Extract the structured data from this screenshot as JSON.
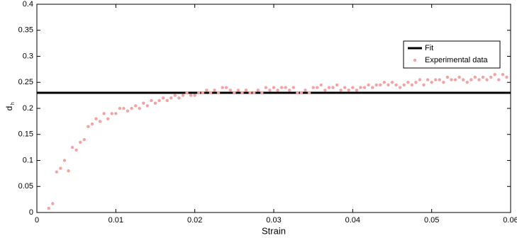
{
  "chart_data": {
    "type": "scatter",
    "xlabel": "Strain",
    "ylabel": "d",
    "ylabel_sub": "h",
    "xlim": [
      0,
      0.06
    ],
    "xticks": [
      0,
      0.01,
      0.02,
      0.03,
      0.04,
      0.05,
      0.06
    ],
    "ylim": [
      0,
      0.4
    ],
    "yticks": [
      0,
      0.05,
      0.1,
      0.15,
      0.2,
      0.25,
      0.3,
      0.35,
      0.4
    ],
    "grid": false,
    "legend": "upper right",
    "series": [
      {
        "name": "Fit",
        "color": "#000000",
        "mode": "line",
        "x": [
          0,
          0.06
        ],
        "values": [
          0.23,
          0.23
        ]
      },
      {
        "name": "Experimental data",
        "color": "#f4a3a3",
        "mode": "markers",
        "x": [
          0.0015,
          0.002,
          0.0025,
          0.003,
          0.0035,
          0.004,
          0.0045,
          0.005,
          0.0055,
          0.006,
          0.0065,
          0.007,
          0.0075,
          0.008,
          0.0085,
          0.009,
          0.0095,
          0.01,
          0.0105,
          0.011,
          0.0115,
          0.012,
          0.0125,
          0.013,
          0.0135,
          0.014,
          0.0145,
          0.015,
          0.0155,
          0.016,
          0.0165,
          0.017,
          0.0175,
          0.018,
          0.0185,
          0.019,
          0.0195,
          0.02,
          0.0205,
          0.021,
          0.0215,
          0.022,
          0.0225,
          0.023,
          0.0235,
          0.024,
          0.0245,
          0.025,
          0.0255,
          0.026,
          0.0265,
          0.027,
          0.0275,
          0.028,
          0.0285,
          0.029,
          0.0295,
          0.03,
          0.0305,
          0.031,
          0.0315,
          0.032,
          0.0325,
          0.033,
          0.0335,
          0.034,
          0.0345,
          0.035,
          0.0355,
          0.036,
          0.0365,
          0.037,
          0.0375,
          0.038,
          0.0385,
          0.039,
          0.0395,
          0.04,
          0.0405,
          0.041,
          0.0415,
          0.042,
          0.0425,
          0.043,
          0.0435,
          0.044,
          0.0445,
          0.045,
          0.0455,
          0.046,
          0.0465,
          0.047,
          0.0475,
          0.048,
          0.0485,
          0.049,
          0.0495,
          0.05,
          0.0505,
          0.051,
          0.0515,
          0.052,
          0.0525,
          0.053,
          0.0535,
          0.054,
          0.0545,
          0.055,
          0.0555,
          0.056,
          0.0565,
          0.057,
          0.0575,
          0.058,
          0.0585,
          0.059,
          0.0595
        ],
        "values": [
          0.008,
          0.017,
          0.078,
          0.085,
          0.1,
          0.08,
          0.125,
          0.12,
          0.135,
          0.14,
          0.165,
          0.17,
          0.18,
          0.175,
          0.19,
          0.18,
          0.19,
          0.19,
          0.2,
          0.2,
          0.195,
          0.2,
          0.205,
          0.2,
          0.21,
          0.205,
          0.215,
          0.21,
          0.215,
          0.22,
          0.215,
          0.22,
          0.225,
          0.22,
          0.225,
          0.23,
          0.225,
          0.225,
          0.23,
          0.23,
          0.235,
          0.23,
          0.235,
          0.23,
          0.24,
          0.24,
          0.235,
          0.23,
          0.235,
          0.23,
          0.235,
          0.23,
          0.23,
          0.235,
          0.23,
          0.24,
          0.235,
          0.24,
          0.235,
          0.24,
          0.24,
          0.235,
          0.24,
          0.23,
          0.23,
          0.235,
          0.23,
          0.24,
          0.24,
          0.245,
          0.235,
          0.24,
          0.24,
          0.245,
          0.235,
          0.24,
          0.235,
          0.24,
          0.235,
          0.24,
          0.24,
          0.245,
          0.24,
          0.245,
          0.245,
          0.25,
          0.245,
          0.25,
          0.245,
          0.24,
          0.245,
          0.25,
          0.245,
          0.25,
          0.255,
          0.245,
          0.255,
          0.25,
          0.255,
          0.255,
          0.25,
          0.26,
          0.255,
          0.255,
          0.26,
          0.255,
          0.25,
          0.255,
          0.26,
          0.255,
          0.26,
          0.255,
          0.26,
          0.265,
          0.255,
          0.265,
          0.26
        ]
      }
    ]
  }
}
